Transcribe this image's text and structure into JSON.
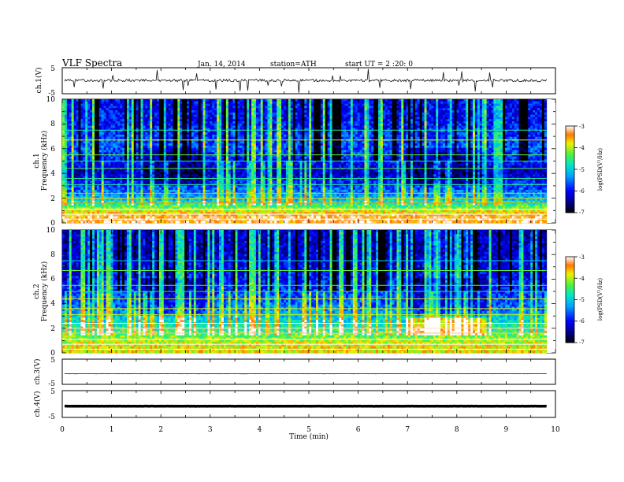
{
  "header": {
    "title": "VLF Spectra",
    "date": "Jan. 14, 2014",
    "station": "station=ATH",
    "start": "start UT = 2 :20: 0"
  },
  "x_axis": {
    "label": "Time (min)",
    "ticks": [
      "0",
      "1",
      "2",
      "3",
      "4",
      "5",
      "6",
      "7",
      "8",
      "9",
      "10"
    ],
    "range": [
      0,
      10
    ],
    "data_end_min": 9.82
  },
  "panels": {
    "ch1_wave": {
      "ylabel": "ch.1(V)",
      "ticks": [
        "5",
        "-5"
      ],
      "range": [
        -5,
        5
      ],
      "baseline": 0.1,
      "noise": 0.5
    },
    "ch1_spec": {
      "ylabel_top": "ch.1",
      "ylabel": "Frequency (kHz)",
      "ticks": [
        "0",
        "2",
        "4",
        "6",
        "8",
        "10"
      ],
      "range": [
        0,
        10
      ]
    },
    "ch2_spec": {
      "ylabel_top": "ch.2",
      "ylabel": "Frequency (kHz)",
      "ticks": [
        "0",
        "2",
        "4",
        "6",
        "8",
        "10"
      ],
      "range": [
        0,
        10
      ]
    },
    "ch3_wave": {
      "ylabel": "ch.3(V)",
      "ticks": [
        "5",
        "-5"
      ],
      "range": [
        -5,
        5
      ],
      "baseline": -0.8,
      "noise": 0.05
    },
    "ch4_wave": {
      "ylabel": "ch.4(V)",
      "ticks": [
        "5",
        "-5"
      ],
      "range": [
        -5,
        5
      ],
      "baseline": -0.8,
      "noise": 0.05
    }
  },
  "colorbar": {
    "label": "log(PSD(V²/Hz)",
    "ticks": [
      "-3",
      "-4",
      "-5",
      "-6",
      "-7"
    ],
    "range": [
      -7,
      -3
    ]
  },
  "chart_data": {
    "type": "heatmap",
    "title": "VLF Spectra",
    "xlabel": "Time (min)",
    "ylabel": "Frequency (kHz)",
    "xlim": [
      0,
      10
    ],
    "ylim": [
      0,
      10
    ],
    "colorbar_range": [
      -7,
      -3
    ],
    "series": [
      {
        "name": "ch.1",
        "description_points": [
          {
            "freq_khz": 0.5,
            "log_psd": -3.3
          },
          {
            "freq_khz": 2.0,
            "log_psd": -5.2
          },
          {
            "freq_khz": 4.0,
            "log_psd": -6.3
          },
          {
            "freq_khz": 6.0,
            "log_psd": -5.6
          },
          {
            "freq_khz": 8.5,
            "log_psd": -6.0
          }
        ]
      },
      {
        "name": "ch.2",
        "description_points": [
          {
            "freq_khz": 0.5,
            "log_psd": -3.8
          },
          {
            "freq_khz": 2.0,
            "log_psd": -4.6
          },
          {
            "freq_khz": 4.0,
            "log_psd": -5.6
          },
          {
            "freq_khz": 6.0,
            "log_psd": -6.0
          },
          {
            "freq_khz": 8.5,
            "log_psd": -6.3
          }
        ]
      }
    ]
  }
}
